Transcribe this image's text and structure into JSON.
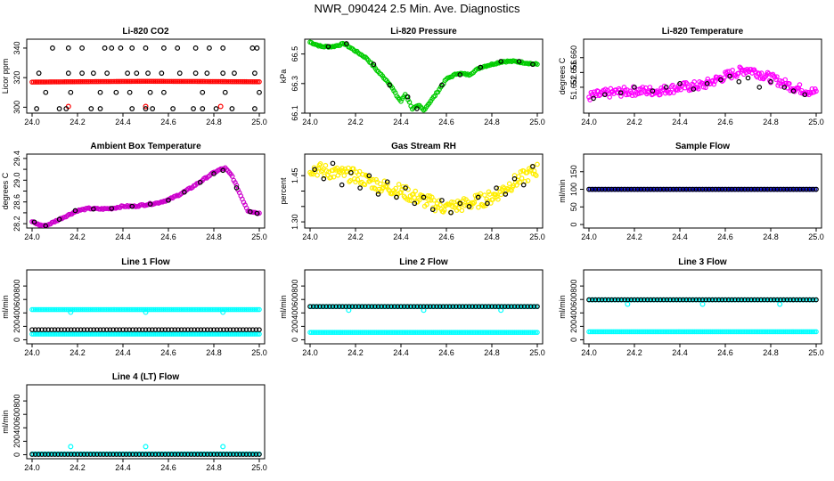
{
  "title": "NWR_090424  2.5 Min. Ave. Diagnostics",
  "chart_data": [
    {
      "type": "scatter",
      "title": "Li-820 CO2",
      "ylabel": "Licor ppm",
      "xlim": [
        24.0,
        25.0
      ],
      "ylim": [
        296,
        346
      ],
      "xticks": [
        "24.0",
        "24.2",
        "24.4",
        "24.6",
        "24.8",
        "25.0"
      ],
      "yticks": [
        300,
        320,
        340
      ],
      "series": [
        {
          "color": "#ff0000",
          "shape": "band",
          "x": [
            24.0,
            24.25,
            24.5,
            24.75,
            25.0
          ],
          "y": [
            317,
            317.3,
            317.5,
            317.4,
            317.2
          ],
          "outliers_x": [
            24.16,
            24.5,
            24.83
          ],
          "outliers_y": [
            300.5,
            300.5,
            300.5
          ]
        },
        {
          "color": "#000000",
          "shape": "circle",
          "rows": [
            {
              "y": 340,
              "x": [
                24.09,
                24.16,
                24.22,
                24.32,
                24.35,
                24.39,
                24.44,
                24.5,
                24.58,
                24.64,
                24.72,
                24.78,
                24.84,
                24.97,
                24.99
              ]
            },
            {
              "y": 323,
              "x": [
                24.03,
                24.16,
                24.22,
                24.27,
                24.33,
                24.42,
                24.46,
                24.51,
                24.57,
                24.65,
                24.72,
                24.77,
                24.84,
                24.89,
                24.98
              ]
            },
            {
              "y": 310,
              "x": [
                24.06,
                24.17,
                24.3,
                24.37,
                24.43,
                24.52,
                24.58,
                24.75,
                24.85,
                25.0
              ]
            },
            {
              "y": 299,
              "x": [
                24.02,
                24.12,
                24.15,
                24.26,
                24.3,
                24.44,
                24.5,
                24.53,
                24.62,
                24.71,
                24.75,
                24.81,
                24.88,
                24.98
              ]
            }
          ]
        }
      ]
    },
    {
      "type": "scatter",
      "title": "Li-820 Pressure",
      "ylabel": "kPa",
      "xlim": [
        24.0,
        25.0
      ],
      "ylim": [
        66.1,
        66.6
      ],
      "xticks": [
        "24.0",
        "24.2",
        "24.4",
        "24.6",
        "24.8",
        "25.0"
      ],
      "yticks": [
        66.1,
        66.3,
        66.5
      ],
      "yticklabels": [
        "66.1",
        "66.3",
        "66.5"
      ],
      "series": [
        {
          "color": "#00cc00",
          "shape": "circle-path",
          "x": [
            24.0,
            24.05,
            24.1,
            24.15,
            24.2,
            24.25,
            24.3,
            24.35,
            24.38,
            24.4,
            24.42,
            24.45,
            24.48,
            24.5,
            24.55,
            24.6,
            24.65,
            24.7,
            24.75,
            24.8,
            24.85,
            24.9,
            24.95,
            25.0
          ],
          "y": [
            66.58,
            66.55,
            66.55,
            66.57,
            66.52,
            66.47,
            66.38,
            66.3,
            66.22,
            66.18,
            66.23,
            66.13,
            66.15,
            66.12,
            66.22,
            66.33,
            66.37,
            66.36,
            66.41,
            66.43,
            66.45,
            66.45,
            66.44,
            66.43
          ]
        },
        {
          "color": "#000000",
          "shape": "circle-sparse",
          "x": [
            24.08,
            24.16,
            24.28,
            24.35,
            24.43,
            24.47,
            24.58,
            24.66,
            24.75,
            24.84,
            24.92,
            24.98
          ],
          "y": [
            66.55,
            66.57,
            66.43,
            66.29,
            66.21,
            66.13,
            66.29,
            66.36,
            66.41,
            66.45,
            66.45,
            66.43
          ]
        }
      ]
    },
    {
      "type": "scatter",
      "title": "Li-820 Temperature",
      "ylabel": "degrees C",
      "xlim": [
        24.0,
        25.0
      ],
      "ylim": [
        51.645,
        51.665
      ],
      "xticks": [
        "24.0",
        "24.2",
        "24.4",
        "24.6",
        "24.8",
        "25.0"
      ],
      "yticks": [
        51.652,
        51.656,
        51.66
      ],
      "yticklabels": [
        "51.652",
        "51.656",
        "51.660"
      ],
      "series": [
        {
          "color": "#ff00ff",
          "shape": "circle-noisy",
          "x": [
            24.0,
            24.1,
            24.2,
            24.3,
            24.4,
            24.5,
            24.6,
            24.7,
            24.8,
            24.9,
            25.0
          ],
          "y": [
            51.6495,
            51.6505,
            51.651,
            51.651,
            51.652,
            51.6525,
            51.655,
            51.657,
            51.6545,
            51.652,
            51.6505
          ],
          "spread": 0.0025
        },
        {
          "color": "#000000",
          "shape": "circle-sparse",
          "x": [
            24.02,
            24.07,
            24.14,
            24.2,
            24.28,
            24.34,
            24.4,
            24.46,
            24.52,
            24.58,
            24.62,
            24.66,
            24.7,
            24.75,
            24.8,
            24.86,
            24.9,
            24.95
          ],
          "y": [
            51.649,
            51.65,
            51.6505,
            51.652,
            51.651,
            51.652,
            51.653,
            51.6515,
            51.653,
            51.654,
            51.655,
            51.6535,
            51.6545,
            51.652,
            51.6535,
            51.652,
            51.651,
            51.65
          ]
        }
      ]
    },
    {
      "type": "scatter",
      "title": "Ambient Box Temperature",
      "ylabel": "degrees C",
      "xlim": [
        24.0,
        25.0
      ],
      "ylim": [
        28.12,
        29.48
      ],
      "xticks": [
        "24.0",
        "24.2",
        "24.4",
        "24.6",
        "24.8",
        "25.0"
      ],
      "yticks": [
        28.2,
        28.4,
        28.6,
        28.8,
        29.0,
        29.2,
        29.4
      ],
      "yticklabels": [
        "28.2",
        "",
        "28.6",
        "",
        "29.0",
        "",
        "29.4"
      ],
      "series": [
        {
          "color": "#cc00cc",
          "shape": "circle-path",
          "x": [
            24.0,
            24.03,
            24.06,
            24.1,
            24.15,
            24.2,
            24.25,
            24.3,
            24.35,
            24.4,
            24.45,
            24.5,
            24.55,
            24.6,
            24.65,
            24.7,
            24.75,
            24.8,
            24.83,
            24.85,
            24.88,
            24.92,
            24.95,
            25.0
          ],
          "y": [
            28.24,
            28.18,
            28.16,
            28.24,
            28.34,
            28.44,
            28.48,
            28.47,
            28.48,
            28.52,
            28.52,
            28.55,
            28.58,
            28.64,
            28.74,
            28.86,
            29.0,
            29.14,
            29.2,
            29.22,
            29.08,
            28.7,
            28.44,
            28.39
          ]
        },
        {
          "color": "#000000",
          "shape": "circle-sparse",
          "x": [
            24.01,
            24.06,
            24.12,
            24.19,
            24.27,
            24.35,
            24.44,
            24.52,
            24.6,
            24.67,
            24.74,
            24.8,
            24.84,
            24.9,
            24.96,
            24.99
          ],
          "y": [
            28.23,
            28.16,
            28.28,
            28.44,
            28.47,
            28.48,
            28.52,
            28.56,
            28.63,
            28.78,
            28.96,
            29.12,
            29.18,
            28.86,
            28.42,
            28.39
          ]
        }
      ]
    },
    {
      "type": "scatter",
      "title": "Gas Stream RH",
      "ylabel": "percent",
      "xlim": [
        24.0,
        25.0
      ],
      "ylim": [
        1.28,
        1.52
      ],
      "xticks": [
        "24.0",
        "24.2",
        "24.4",
        "24.6",
        "24.8",
        "25.0"
      ],
      "yticks": [
        1.3,
        1.35,
        1.4,
        1.45
      ],
      "yticklabels": [
        "1.30",
        "",
        "",
        "1.45"
      ],
      "series": [
        {
          "color": "#ffee00",
          "shape": "circle-noisy",
          "x": [
            24.0,
            24.1,
            24.2,
            24.3,
            24.4,
            24.5,
            24.6,
            24.7,
            24.8,
            24.9,
            25.0
          ],
          "y": [
            1.475,
            1.46,
            1.45,
            1.42,
            1.4,
            1.37,
            1.345,
            1.36,
            1.38,
            1.43,
            1.47
          ],
          "spread": 0.045
        },
        {
          "color": "#000000",
          "shape": "circle-sparse",
          "x": [
            24.02,
            24.06,
            24.1,
            24.14,
            24.18,
            24.22,
            24.26,
            24.3,
            24.34,
            24.38,
            24.42,
            24.46,
            24.5,
            24.54,
            24.58,
            24.62,
            24.66,
            24.7,
            24.74,
            24.78,
            24.82,
            24.86,
            24.9,
            24.94,
            24.98
          ],
          "y": [
            1.47,
            1.44,
            1.49,
            1.42,
            1.46,
            1.41,
            1.45,
            1.39,
            1.43,
            1.38,
            1.41,
            1.36,
            1.38,
            1.34,
            1.37,
            1.33,
            1.36,
            1.35,
            1.38,
            1.36,
            1.41,
            1.39,
            1.44,
            1.42,
            1.48
          ]
        }
      ]
    },
    {
      "type": "scatter",
      "title": "Sample Flow",
      "ylabel": "ml/min",
      "xlim": [
        24.0,
        25.0
      ],
      "ylim": [
        -10,
        200
      ],
      "xticks": [
        "24.0",
        "24.2",
        "24.4",
        "24.6",
        "24.8",
        "25.0"
      ],
      "yticks": [
        0,
        50,
        100,
        150
      ],
      "series": [
        {
          "color": "#0000cc",
          "shape": "band",
          "x": [
            24.0,
            25.0
          ],
          "y": [
            100,
            100
          ]
        },
        {
          "color": "#000000",
          "shape": "row",
          "x": [
            24.0,
            25.0
          ],
          "y": [
            100,
            100
          ]
        }
      ]
    },
    {
      "type": "scatter",
      "title": "Line 1 Flow",
      "ylabel": "ml/min",
      "xlim": [
        24.0,
        25.0
      ],
      "ylim": [
        -60,
        1040
      ],
      "xticks": [
        "24.0",
        "24.2",
        "24.4",
        "24.6",
        "24.8",
        "25.0"
      ],
      "yticks": [
        0,
        200,
        400,
        600,
        800
      ],
      "series": [
        {
          "color": "#00ffff",
          "shape": "band",
          "x": [
            24.0,
            25.0
          ],
          "y": [
            450,
            450
          ],
          "outliers_x": [
            24.17,
            24.5,
            24.84
          ],
          "outliers_y": [
            410,
            410,
            410
          ]
        },
        {
          "color": "#00ffff",
          "shape": "band",
          "x": [
            24.0,
            25.0
          ],
          "y": [
            85,
            85
          ]
        },
        {
          "color": "#000000",
          "shape": "row",
          "x": [
            24.0,
            25.0
          ],
          "y": [
            150,
            150
          ]
        }
      ]
    },
    {
      "type": "scatter",
      "title": "Line 2 Flow",
      "ylabel": "ml/min",
      "xlim": [
        24.0,
        25.0
      ],
      "ylim": [
        -60,
        1040
      ],
      "xticks": [
        "24.0",
        "24.2",
        "24.4",
        "24.6",
        "24.8",
        "25.0"
      ],
      "yticks": [
        0,
        200,
        400,
        600,
        800
      ],
      "series": [
        {
          "color": "#00ffff",
          "shape": "band",
          "x": [
            24.0,
            25.0
          ],
          "y": [
            495,
            495
          ],
          "outliers_x": [
            24.17,
            24.5,
            24.84
          ],
          "outliers_y": [
            440,
            440,
            440
          ]
        },
        {
          "color": "#00ffff",
          "shape": "band",
          "x": [
            24.0,
            25.0
          ],
          "y": [
            110,
            110
          ]
        },
        {
          "color": "#000000",
          "shape": "row",
          "x": [
            24.0,
            25.0
          ],
          "y": [
            495,
            495
          ]
        }
      ]
    },
    {
      "type": "scatter",
      "title": "Line 3 Flow",
      "ylabel": "ml/min",
      "xlim": [
        24.0,
        25.0
      ],
      "ylim": [
        -60,
        1040
      ],
      "xticks": [
        "24.0",
        "24.2",
        "24.4",
        "24.6",
        "24.8",
        "25.0"
      ],
      "yticks": [
        0,
        200,
        400,
        600,
        800
      ],
      "series": [
        {
          "color": "#00ffff",
          "shape": "band",
          "x": [
            24.0,
            25.0
          ],
          "y": [
            595,
            595
          ],
          "outliers_x": [
            24.17,
            24.5,
            24.84
          ],
          "outliers_y": [
            530,
            530,
            530
          ]
        },
        {
          "color": "#00ffff",
          "shape": "band",
          "x": [
            24.0,
            25.0
          ],
          "y": [
            120,
            120
          ]
        },
        {
          "color": "#000000",
          "shape": "row",
          "x": [
            24.0,
            25.0
          ],
          "y": [
            595,
            595
          ]
        }
      ]
    },
    {
      "type": "scatter",
      "title": "Line 4 (LT) Flow",
      "ylabel": "ml/min",
      "xlim": [
        24.0,
        25.0
      ],
      "ylim": [
        -60,
        1040
      ],
      "xticks": [
        "24.0",
        "24.2",
        "24.4",
        "24.6",
        "24.8",
        "25.0"
      ],
      "yticks": [
        0,
        200,
        400,
        600,
        800
      ],
      "series": [
        {
          "color": "#00ffff",
          "shape": "band",
          "x": [
            24.0,
            25.0
          ],
          "y": [
            10,
            10
          ],
          "outliers_x": [
            24.17,
            24.5,
            24.84
          ],
          "outliers_y": [
            120,
            120,
            120
          ]
        },
        {
          "color": "#000000",
          "shape": "row",
          "x": [
            24.0,
            25.0
          ],
          "y": [
            5,
            5
          ]
        }
      ]
    }
  ]
}
